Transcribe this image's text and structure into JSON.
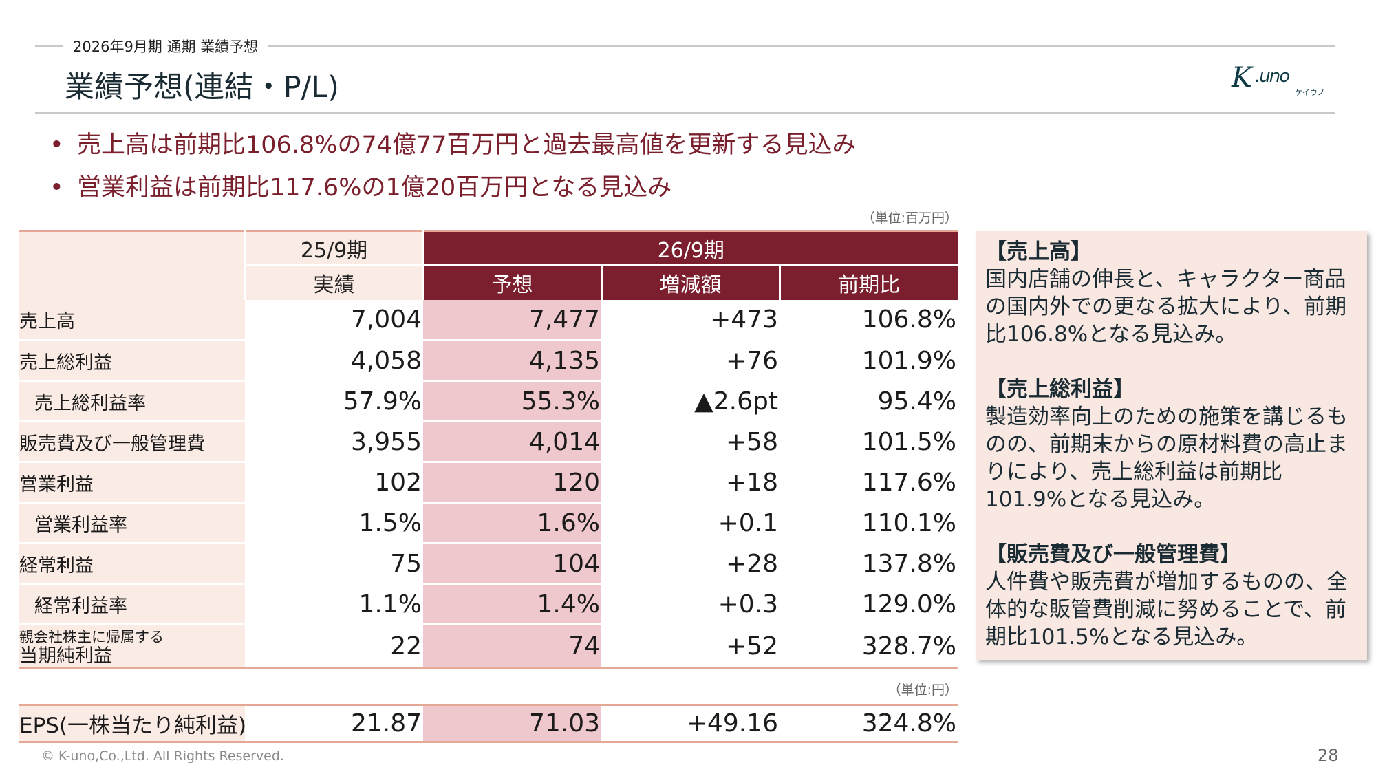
{
  "header": {
    "subtitle": "2026年9月期 通期  業績予想",
    "title": "業績予想(連結・P/L)",
    "logo_text": "K.uno",
    "logo_kana": "ケイウノ"
  },
  "bullets": [
    "売上高は前期比106.8%の74億77百万円と過去最高値を更新する見込み",
    "営業利益は前期比117.6%の1億20百万円となる見込み"
  ],
  "table": {
    "unit": "（単位:百万円）",
    "period_prev": "25/9期",
    "period_cur": "26/9期",
    "columns": [
      "実績",
      "予想",
      "増減額",
      "前期比"
    ],
    "rows": [
      {
        "label": "売上高",
        "values": [
          "7,004",
          "7,477",
          "+473",
          "106.8%"
        ]
      },
      {
        "label": "売上総利益",
        "values": [
          "4,058",
          "4,135",
          "+76",
          "101.9%"
        ]
      },
      {
        "label": "売上総利益率",
        "values": [
          "57.9%",
          "55.3%",
          "▲2.6pt",
          "95.4%"
        ]
      },
      {
        "label": "販売費及び一般管理費",
        "values": [
          "3,955",
          "4,014",
          "+58",
          "101.5%"
        ]
      },
      {
        "label": "営業利益",
        "values": [
          "102",
          "120",
          "+18",
          "117.6%"
        ]
      },
      {
        "label": "営業利益率",
        "values": [
          "1.5%",
          "1.6%",
          "+0.1",
          "110.1%"
        ]
      },
      {
        "label": "経常利益",
        "values": [
          "75",
          "104",
          "+28",
          "137.8%"
        ]
      },
      {
        "label": "経常利益率",
        "values": [
          "1.1%",
          "1.4%",
          "+0.3",
          "129.0%"
        ]
      },
      {
        "label_small": "親会社株主に帰属する",
        "label": "当期純利益",
        "values": [
          "22",
          "74",
          "+52",
          "328.7%"
        ]
      }
    ],
    "eps_unit": "（単位:円）",
    "eps": {
      "label": "EPS(一株当たり純利益)",
      "values": [
        "21.87",
        "71.03",
        "+49.16",
        "324.8%"
      ]
    }
  },
  "commentary": [
    {
      "heading": "【売上高】",
      "text": "国内店舗の伸長と、キャラクター商品の国内外での更なる拡大により、前期比106.8%となる見込み。"
    },
    {
      "heading": "【売上総利益】",
      "text": "製造効率向上のための施策を講じるものの、前期末からの原材料費の高止まりにより、売上総利益は前期比101.9%となる見込み。"
    },
    {
      "heading": "【販売費及び一般管理費】",
      "text": "人件費や販売費が増加するものの、全体的な販管費削減に努めることで、前期比101.5%となる見込み。"
    }
  ],
  "footer": {
    "copyright": "© K-uno,Co.,Ltd. All Rights Reserved.",
    "page": "28"
  },
  "colors": {
    "accent": "#7b1f2e",
    "label_bg": "#fbebe5",
    "forecast_bg": "#efc8ce",
    "box_bg": "#f9e8e2"
  }
}
